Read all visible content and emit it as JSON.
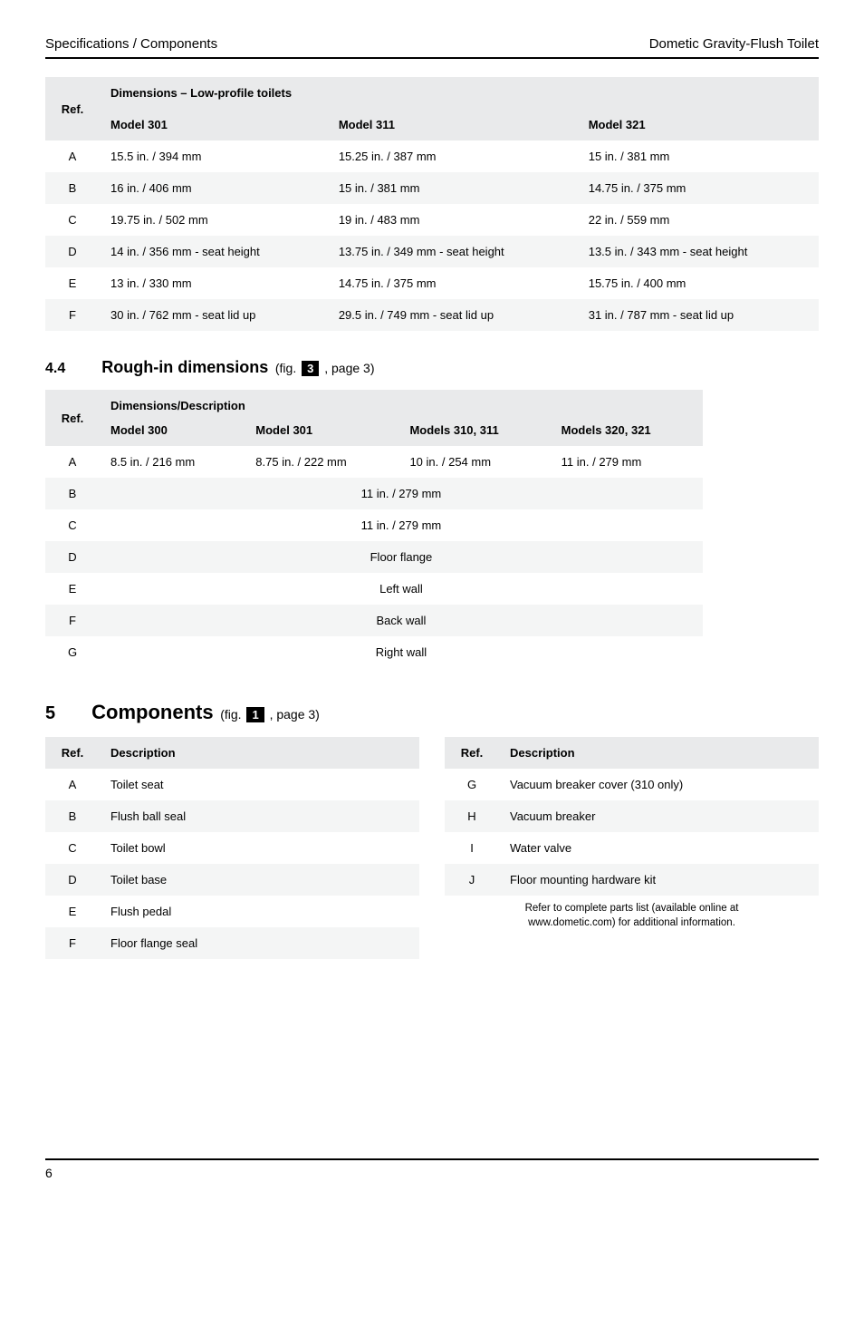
{
  "header": {
    "left": "Specifications / Components",
    "right": "Dometic Gravity-Flush Toilet"
  },
  "table1": {
    "dimensions_label": "Dimensions – Low-profile toilets",
    "ref_label": "Ref.",
    "cols": [
      "Model 301",
      "Model 311",
      "Model 321"
    ],
    "rows": [
      {
        "ref": "A",
        "cells": [
          "15.5 in. / 394 mm",
          "15.25 in. / 387 mm",
          "15 in. / 381 mm"
        ]
      },
      {
        "ref": "B",
        "cells": [
          "16 in. / 406 mm",
          "15 in. / 381 mm",
          "14.75 in. / 375 mm"
        ]
      },
      {
        "ref": "C",
        "cells": [
          "19.75 in. / 502 mm",
          "19 in. / 483 mm",
          "22 in. / 559 mm"
        ]
      },
      {
        "ref": "D",
        "cells": [
          "14 in. / 356 mm - seat height",
          "13.75 in. / 349 mm - seat height",
          "13.5 in. / 343 mm - seat height"
        ]
      },
      {
        "ref": "E",
        "cells": [
          "13 in. / 330 mm",
          "14.75 in. / 375 mm",
          "15.75 in. / 400 mm"
        ]
      },
      {
        "ref": "F",
        "cells": [
          "30 in. / 762 mm - seat lid up",
          "29.5 in. / 749 mm - seat lid up",
          "31 in. / 787 mm - seat lid up"
        ]
      }
    ]
  },
  "section44": {
    "num": "4.4",
    "title": "Rough-in dimensions",
    "fig_prefix": "(fig.",
    "fig_num": "3",
    "fig_suffix": ", page 3)"
  },
  "table2": {
    "ref_label": "Ref.",
    "dim_label": "Dimensions/Description",
    "cols": [
      "Model 300",
      "Model 301",
      "Models 310, 311",
      "Models 320, 321"
    ],
    "rowA": {
      "ref": "A",
      "cells": [
        "8.5 in. / 216 mm",
        "8.75 in. / 222 mm",
        "10 in. / 254 mm",
        "11 in. / 279 mm"
      ]
    },
    "span_rows": [
      {
        "ref": "B",
        "text": "11 in. / 279 mm"
      },
      {
        "ref": "C",
        "text": "11 in. / 279 mm"
      },
      {
        "ref": "D",
        "text": "Floor flange"
      },
      {
        "ref": "E",
        "text": "Left wall"
      },
      {
        "ref": "F",
        "text": "Back wall"
      },
      {
        "ref": "G",
        "text": "Right wall"
      }
    ]
  },
  "section5": {
    "num": "5",
    "title": "Components",
    "fig_prefix": "(fig.",
    "fig_num": "1",
    "fig_suffix": ", page 3)"
  },
  "comp_left": {
    "ref_label": "Ref.",
    "desc_label": "Description",
    "rows": [
      {
        "ref": "A",
        "desc": "Toilet seat"
      },
      {
        "ref": "B",
        "desc": "Flush ball seal"
      },
      {
        "ref": "C",
        "desc": "Toilet bowl"
      },
      {
        "ref": "D",
        "desc": "Toilet base"
      },
      {
        "ref": "E",
        "desc": "Flush pedal"
      },
      {
        "ref": "F",
        "desc": "Floor flange seal"
      }
    ]
  },
  "comp_right": {
    "ref_label": "Ref.",
    "desc_label": "Description",
    "rows": [
      {
        "ref": "G",
        "desc": "Vacuum breaker cover (310 only)"
      },
      {
        "ref": "H",
        "desc": "Vacuum breaker"
      },
      {
        "ref": "I",
        "desc": "Water valve"
      },
      {
        "ref": "J",
        "desc": "Floor mounting hardware kit"
      }
    ],
    "note_line1": "Refer to complete parts list (available online at",
    "note_line2": "www.dometic.com) for additional information."
  },
  "footer": {
    "page": "6"
  }
}
